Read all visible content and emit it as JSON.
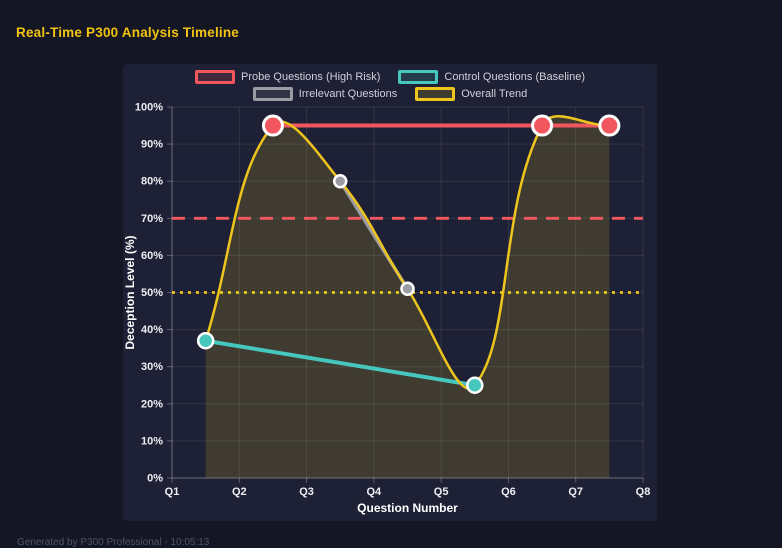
{
  "page": {
    "title": "Real-Time P300 Analysis Timeline",
    "footer": "Generated by P300 Professional - 10:05:13"
  },
  "colors": {
    "page_bg": "#141624",
    "panel_bg": "#1e2135",
    "probe_red": "#f2575f",
    "control_teal": "#45c7bd",
    "irrelevant_gray": "#9b9ba3",
    "trend_yellow": "#eec51c",
    "tick_text": "#eceef2",
    "legend_text": "#ced0da",
    "title_yellow": "#f2c411"
  },
  "chart_data": {
    "type": "line",
    "title": "Real-Time P300 Analysis Timeline",
    "xlabel": "Question Number",
    "ylabel": "Deception Level (%)",
    "categories": [
      "Q1",
      "Q2",
      "Q3",
      "Q4",
      "Q5",
      "Q6",
      "Q7",
      "Q8"
    ],
    "ylim": [
      0,
      100
    ],
    "yticks": [
      "0%",
      "10%",
      "20%",
      "30%",
      "40%",
      "50%",
      "60%",
      "70%",
      "80%",
      "90%",
      "100%"
    ],
    "grid": true,
    "legend_position": "top",
    "series": [
      {
        "name": "Probe Questions (High Risk)",
        "color": "#f2575f",
        "x": [
          2.5,
          6.5,
          7.5
        ],
        "values": [
          95,
          95,
          95
        ],
        "line_width": 4,
        "point_radius": 9.5,
        "smooth": false,
        "fill": false
      },
      {
        "name": "Control Questions (Baseline)",
        "color": "#45c7bd",
        "x": [
          1.5,
          5.5
        ],
        "values": [
          37,
          25
        ],
        "line_width": 4,
        "point_radius": 7.5,
        "smooth": false,
        "fill": false
      },
      {
        "name": "Irrelevant Questions",
        "color": "#9b9ba3",
        "x": [
          3.5,
          4.5
        ],
        "values": [
          80,
          51
        ],
        "line_width": 3.5,
        "point_radius": 6,
        "smooth": false,
        "fill": false
      },
      {
        "name": "Overall Trend",
        "color": "#eec51c",
        "x": [
          1.5,
          2.5,
          3.5,
          4.5,
          5.5,
          6.5,
          7.5
        ],
        "values": [
          37,
          95,
          80,
          51,
          25,
          95,
          95
        ],
        "line_width": 2.5,
        "point_radius": 0,
        "smooth": true,
        "fill": true,
        "fill_opacity": 0.16
      }
    ],
    "thresholds": [
      {
        "value": 70,
        "color": "#f2575f",
        "style": "dashed"
      },
      {
        "value": 50,
        "color": "#eec51c",
        "style": "dotted"
      }
    ]
  }
}
